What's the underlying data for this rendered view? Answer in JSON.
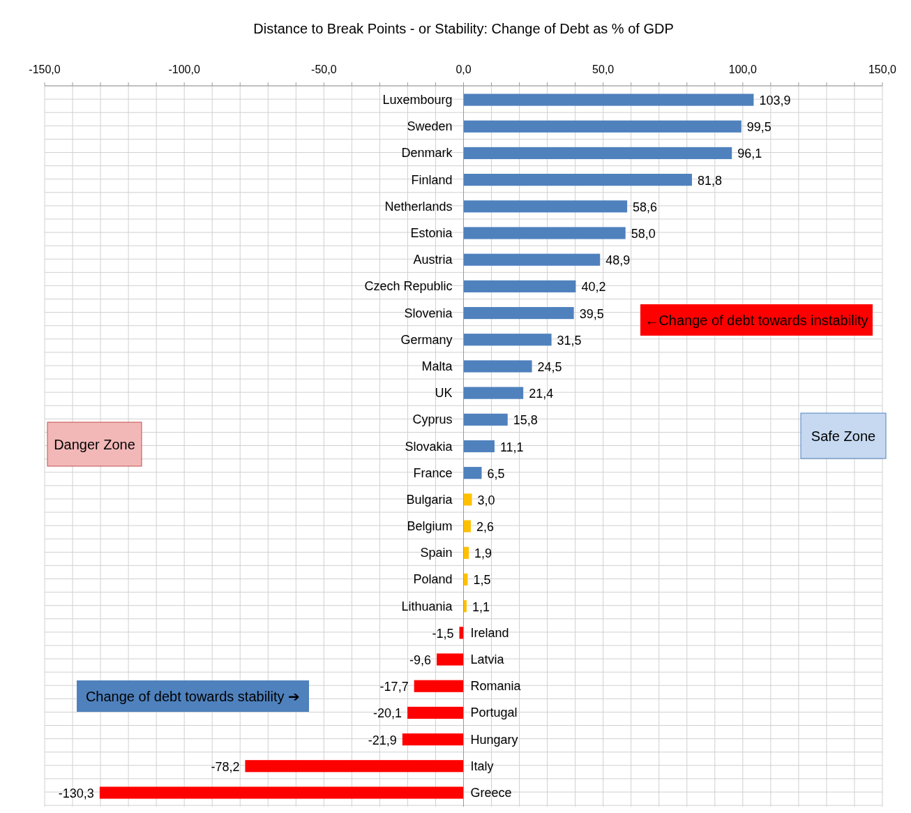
{
  "chart_data": {
    "type": "bar",
    "orientation": "horizontal",
    "title": "Distance to Break Points - or Stability: Change of Debt as % of GDP",
    "categories": [
      "Luxembourg",
      "Sweden",
      "Denmark",
      "Finland",
      "Netherlands",
      "Estonia",
      "Austria",
      "Czech Republic",
      "Slovenia",
      "Germany",
      "Malta",
      "UK",
      "Cyprus",
      "Slovakia",
      "France",
      "Bulgaria",
      "Belgium",
      "Spain",
      "Poland",
      "Lithuania",
      "Ireland",
      "Latvia",
      "Romania",
      "Portugal",
      "Hungary",
      "Italy",
      "Greece"
    ],
    "values": [
      103.9,
      99.5,
      96.1,
      81.8,
      58.6,
      58.0,
      48.9,
      40.2,
      39.5,
      31.5,
      24.5,
      21.4,
      15.8,
      11.1,
      6.5,
      3.0,
      2.6,
      1.9,
      1.5,
      1.1,
      -1.5,
      -9.6,
      -17.7,
      -20.1,
      -21.9,
      -78.2,
      -130.3
    ],
    "value_labels": [
      "103,9",
      "99,5",
      "96,1",
      "81,8",
      "58,6",
      "58,0",
      "48,9",
      "40,2",
      "39,5",
      "31,5",
      "24,5",
      "21,4",
      "15,8",
      "11,1",
      "6,5",
      "3,0",
      "2,6",
      "1,9",
      "1,5",
      "1,1",
      "-1,5",
      "-9,6",
      "-17,7",
      "-20,1",
      "-21,9",
      "-78,2",
      "-130,3"
    ],
    "colors": [
      "#4f81bd",
      "#4f81bd",
      "#4f81bd",
      "#4f81bd",
      "#4f81bd",
      "#4f81bd",
      "#4f81bd",
      "#4f81bd",
      "#4f81bd",
      "#4f81bd",
      "#4f81bd",
      "#4f81bd",
      "#4f81bd",
      "#4f81bd",
      "#4f81bd",
      "#ffc000",
      "#ffc000",
      "#ffc000",
      "#ffc000",
      "#ffc000",
      "#ff0000",
      "#ff0000",
      "#ff0000",
      "#ff0000",
      "#ff0000",
      "#ff0000",
      "#ff0000"
    ],
    "xlim": [
      -150,
      150
    ],
    "xticks": [
      {
        "value": -150,
        "label": "-150,0"
      },
      {
        "value": -140,
        "label": null
      },
      {
        "value": -130,
        "label": null
      },
      {
        "value": -120,
        "label": null
      },
      {
        "value": -110,
        "label": null
      },
      {
        "value": -100,
        "label": "-100,0"
      },
      {
        "value": -90,
        "label": null
      },
      {
        "value": -80,
        "label": null
      },
      {
        "value": -70,
        "label": null
      },
      {
        "value": -60,
        "label": null
      },
      {
        "value": -50,
        "label": "-50,0"
      },
      {
        "value": -40,
        "label": null
      },
      {
        "value": -30,
        "label": null
      },
      {
        "value": -20,
        "label": null
      },
      {
        "value": -10,
        "label": null
      },
      {
        "value": 0,
        "label": "0,0"
      },
      {
        "value": 10,
        "label": null
      },
      {
        "value": 20,
        "label": null
      },
      {
        "value": 30,
        "label": null
      },
      {
        "value": 40,
        "label": null
      },
      {
        "value": 50,
        "label": "50,0"
      },
      {
        "value": 60,
        "label": null
      },
      {
        "value": 70,
        "label": null
      },
      {
        "value": 80,
        "label": null
      },
      {
        "value": 90,
        "label": null
      },
      {
        "value": 100,
        "label": "100,0"
      },
      {
        "value": 110,
        "label": null
      },
      {
        "value": 120,
        "label": null
      },
      {
        "value": 130,
        "label": null
      },
      {
        "value": 140,
        "label": null
      },
      {
        "value": 150,
        "label": "150,0"
      }
    ],
    "grid": true,
    "annotations": [
      "←Change of debt towards instability",
      "Change of debt towards stability ➔",
      "Danger Zone",
      "Safe Zone"
    ]
  }
}
